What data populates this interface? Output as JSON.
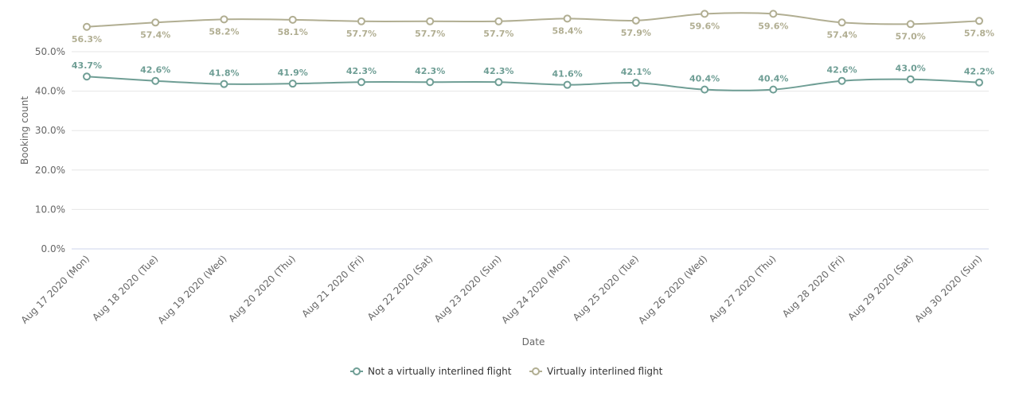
{
  "chart_data": {
    "type": "line",
    "xlabel": "Date",
    "ylabel": "Booking count",
    "ylim": [
      0,
      50
    ],
    "yticks": [
      0,
      10,
      20,
      30,
      40,
      50
    ],
    "ytick_labels": [
      "0.0%",
      "10.0%",
      "20.0%",
      "30.0%",
      "40.0%",
      "50.0%"
    ],
    "grid": true,
    "legend_position": "bottom-center",
    "categories": [
      "Aug 17 2020 (Mon)",
      "Aug 18 2020 (Tue)",
      "Aug 19 2020 (Wed)",
      "Aug 20 2020 (Thu)",
      "Aug 21 2020 (Fri)",
      "Aug 22 2020 (Sat)",
      "Aug 23 2020 (Sun)",
      "Aug 24 2020 (Mon)",
      "Aug 25 2020 (Tue)",
      "Aug 26 2020 (Wed)",
      "Aug 27 2020 (Thu)",
      "Aug 28 2020 (Fri)",
      "Aug 29 2020 (Sat)",
      "Aug 30 2020 (Sun)"
    ],
    "series": [
      {
        "name": "Not a virtually interlined flight",
        "color": "#6f9e95",
        "values": [
          43.7,
          42.6,
          41.8,
          41.9,
          42.3,
          42.3,
          42.3,
          41.6,
          42.1,
          40.4,
          40.4,
          42.6,
          43.0,
          42.2
        ],
        "labels": [
          "43.7%",
          "42.6%",
          "41.8%",
          "41.9%",
          "42.3%",
          "42.3%",
          "42.3%",
          "41.6%",
          "42.1%",
          "40.4%",
          "40.4%",
          "42.6%",
          "43.0%",
          "42.2%"
        ]
      },
      {
        "name": "Virtually interlined flight",
        "color": "#b1ae92",
        "values": [
          56.3,
          57.4,
          58.2,
          58.1,
          57.7,
          57.7,
          57.7,
          58.4,
          57.9,
          59.6,
          59.6,
          57.4,
          57.0,
          57.8
        ],
        "labels": [
          "56.3%",
          "57.4%",
          "58.2%",
          "58.1%",
          "57.7%",
          "57.7%",
          "57.7%",
          "58.4%",
          "57.9%",
          "59.6%",
          "59.6%",
          "57.4%",
          "57.0%",
          "57.8%"
        ]
      }
    ]
  }
}
